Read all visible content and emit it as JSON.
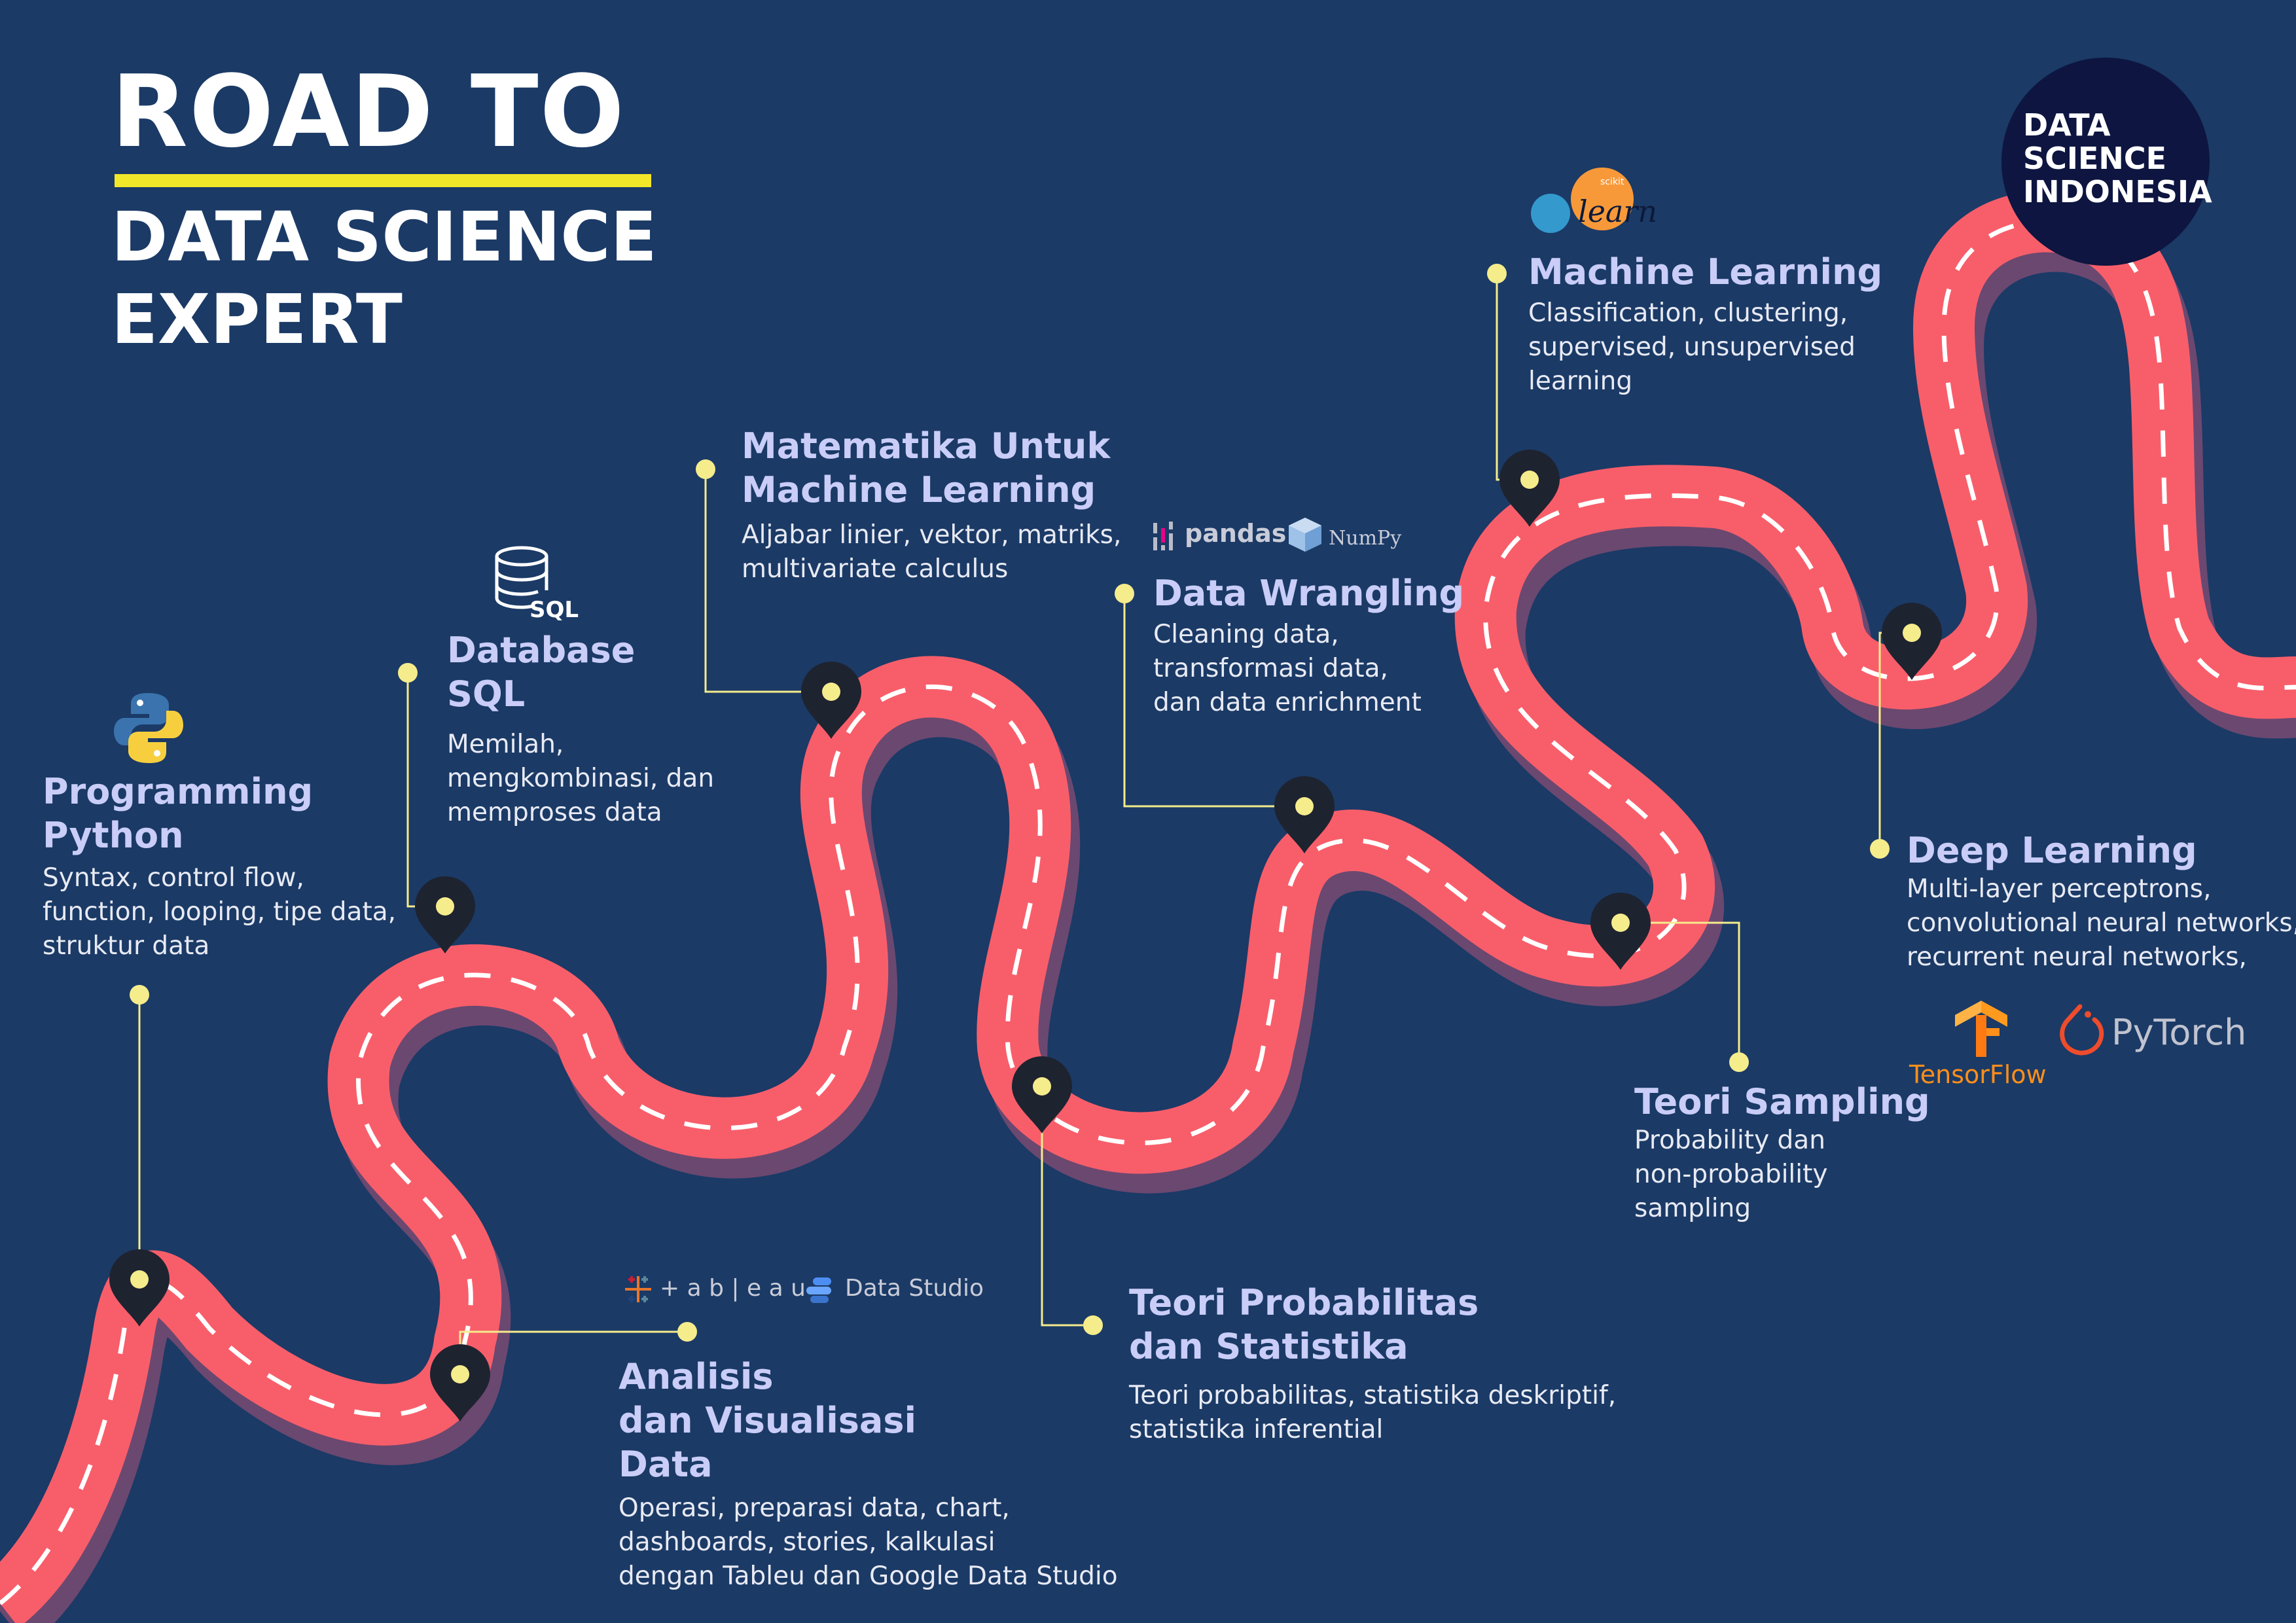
{
  "title": {
    "line1": "ROAD TO",
    "line2": "DATA SCIENCE",
    "line3": "EXPERT"
  },
  "brand": {
    "line1": "DATA",
    "line2": "SCIENCE",
    "line3": "INDONESIA"
  },
  "colors": {
    "background": "#1b3a66",
    "road": "#f85e6a",
    "road_shadow": "#6b4870",
    "lane_marks": "#ffffff",
    "accent_yellow": "#f2e829",
    "connector": "#f5ec8c",
    "heading": "#c9cdf8",
    "pin": "#1e2330"
  },
  "milestones": [
    {
      "id": "python",
      "heading": [
        "Programming",
        "Python"
      ],
      "description": [
        "Syntax, control flow,",
        "function, looping, tipe data,",
        "struktur data"
      ],
      "icon": "python-logo-icon"
    },
    {
      "id": "sql",
      "heading": [
        "Database",
        "SQL"
      ],
      "description": [
        "Memilah,",
        "mengkombinasi, dan",
        "memproses data"
      ],
      "icon": "database-sql-icon"
    },
    {
      "id": "visualisasi",
      "heading": [
        "Analisis",
        "dan Visualisasi",
        "Data"
      ],
      "description": [
        "Operasi, preparasi data, chart,",
        "dashboards, stories, kalkulasi",
        "dengan Tableu dan Google Data Studio"
      ],
      "icon": "tableau-datastudio-icons"
    },
    {
      "id": "matematika",
      "heading": [
        "Matematika Untuk",
        "Machine Learning"
      ],
      "description": [
        "Aljabar linier, vektor, matriks,",
        "multivariate calculus"
      ]
    },
    {
      "id": "probabilitas",
      "heading": [
        "Teori Probabilitas",
        "dan Statistika"
      ],
      "description": [
        "Teori probabilitas, statistika deskriptif,",
        "statistika inferential"
      ]
    },
    {
      "id": "wrangling",
      "heading": [
        "Data Wrangling"
      ],
      "description": [
        "Cleaning data,",
        "transformasi data,",
        "dan data enrichment"
      ],
      "icon": "pandas-numpy-icons"
    },
    {
      "id": "sampling",
      "heading": [
        "Teori Sampling"
      ],
      "description": [
        "Probability dan",
        "non-probability",
        "sampling"
      ]
    },
    {
      "id": "ml",
      "heading": [
        "Machine Learning"
      ],
      "description": [
        "Classification, clustering,",
        "supervised, unsupervised",
        "learning"
      ],
      "icon": "scikit-learn-icon"
    },
    {
      "id": "dl",
      "heading": [
        "Deep Learning"
      ],
      "description": [
        "Multi-layer perceptrons,",
        "convolutional neural networks,",
        "recurrent neural networks,"
      ],
      "icon": "tensorflow-pytorch-icons"
    }
  ],
  "tools": {
    "sql_label": "SQL",
    "tableau": "+ a b | e a u",
    "data_studio": "Data Studio",
    "pandas": "pandas",
    "numpy": "NumPy",
    "sklearn_small": "scikit",
    "sklearn_learn": "learn",
    "tensorflow": "TensorFlow",
    "pytorch": "PyTorch"
  }
}
